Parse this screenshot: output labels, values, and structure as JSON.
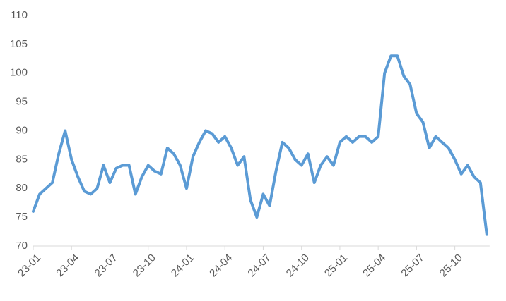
{
  "chart_data": {
    "type": "line",
    "categories": [
      "23-01",
      null,
      null,
      null,
      null,
      null,
      "23-04",
      null,
      null,
      null,
      null,
      null,
      "23-07",
      null,
      null,
      null,
      null,
      null,
      "23-10",
      null,
      null,
      null,
      null,
      null,
      "24-01",
      null,
      null,
      null,
      null,
      null,
      "24-04",
      null,
      null,
      null,
      null,
      null,
      "24-07",
      null,
      null,
      null,
      null,
      null,
      "24-10",
      null,
      null,
      null,
      null,
      null,
      "25-01",
      null,
      null,
      null,
      null,
      null,
      "25-04",
      null,
      null,
      null,
      null,
      null,
      "25-07",
      null,
      null,
      null,
      null,
      null,
      "25-10",
      null,
      null,
      null,
      null,
      null
    ],
    "series": [
      {
        "color": "#5b9bd5",
        "values": [
          76,
          79,
          80,
          81,
          86,
          90,
          85,
          82,
          79.5,
          79,
          80,
          84,
          81,
          83.5,
          84,
          84,
          79,
          82,
          84,
          83,
          82.5,
          87,
          86,
          84,
          80,
          85.5,
          88,
          90,
          89.5,
          88,
          89,
          87,
          84,
          85.5,
          78,
          75,
          79,
          77,
          83,
          88,
          87,
          85,
          84,
          86,
          81,
          84,
          85.5,
          84,
          88,
          89,
          88,
          89,
          89,
          88,
          89,
          100,
          103,
          103,
          99.5,
          98,
          93,
          91.5,
          87,
          89,
          88,
          87,
          85,
          82.5,
          84,
          82,
          81,
          72
        ]
      }
    ],
    "ylim": [
      70,
      110
    ],
    "yticks": [
      70,
      75,
      80,
      85,
      90,
      95,
      100,
      105,
      110
    ]
  }
}
